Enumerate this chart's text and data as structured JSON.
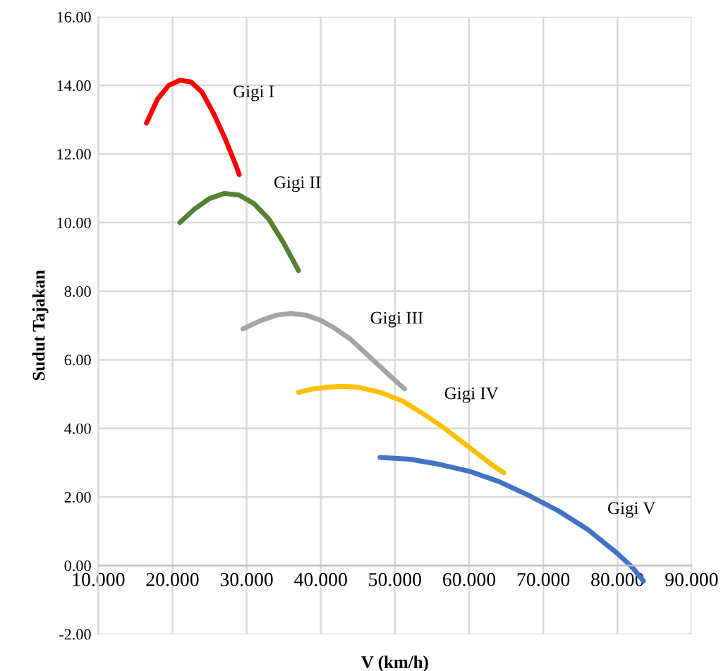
{
  "chart_data": {
    "type": "line",
    "xlabel": "V (km/h)",
    "ylabel": "Sudut Tajakan",
    "xlim": [
      10,
      90
    ],
    "ylim": [
      -2,
      16
    ],
    "xticks": [
      {
        "value": 10,
        "label": "10.000"
      },
      {
        "value": 20,
        "label": "20.000"
      },
      {
        "value": 30,
        "label": "30.000"
      },
      {
        "value": 40,
        "label": "40.000"
      },
      {
        "value": 50,
        "label": "50.000"
      },
      {
        "value": 60,
        "label": "60.000"
      },
      {
        "value": 70,
        "label": "70.000"
      },
      {
        "value": 80,
        "label": "80.000"
      },
      {
        "value": 90,
        "label": "90.000"
      }
    ],
    "yticks": [
      {
        "value": -2,
        "label": "-2.00"
      },
      {
        "value": 0,
        "label": "0.00"
      },
      {
        "value": 2,
        "label": "2.00"
      },
      {
        "value": 4,
        "label": "4.00"
      },
      {
        "value": 6,
        "label": "6.00"
      },
      {
        "value": 8,
        "label": "8.00"
      },
      {
        "value": 10,
        "label": "10.00"
      },
      {
        "value": 12,
        "label": "12.00"
      },
      {
        "value": 14,
        "label": "14.00"
      },
      {
        "value": 16,
        "label": "16.00"
      }
    ],
    "grid": true,
    "marker": "none",
    "line_style": "solid",
    "series": [
      {
        "name": "Gigi I",
        "color": "#ff0000",
        "x": [
          16.5,
          18,
          19.5,
          21,
          22.5,
          24,
          25.5,
          27,
          28.5,
          29
        ],
        "values": [
          12.9,
          13.6,
          14.0,
          14.15,
          14.1,
          13.8,
          13.2,
          12.5,
          11.7,
          11.4
        ]
      },
      {
        "name": "Gigi II",
        "color": "#548235",
        "x": [
          21,
          23,
          25,
          27,
          29,
          31,
          33,
          35,
          37
        ],
        "values": [
          10.0,
          10.4,
          10.7,
          10.85,
          10.8,
          10.55,
          10.1,
          9.4,
          8.6
        ]
      },
      {
        "name": "Gigi III",
        "color": "#a5a5a5",
        "x": [
          29.5,
          32,
          34,
          36,
          38,
          40,
          42,
          44,
          46,
          48,
          50,
          51.3
        ],
        "values": [
          6.9,
          7.15,
          7.3,
          7.35,
          7.3,
          7.15,
          6.9,
          6.6,
          6.2,
          5.8,
          5.4,
          5.15
        ]
      },
      {
        "name": "Gigi IV",
        "color": "#ffc000",
        "x": [
          37,
          39,
          41,
          43,
          45,
          48,
          51,
          54,
          57,
          60,
          63,
          64.7
        ],
        "values": [
          5.05,
          5.15,
          5.2,
          5.22,
          5.2,
          5.05,
          4.8,
          4.4,
          3.95,
          3.45,
          2.95,
          2.7
        ]
      },
      {
        "name": "Gigi V",
        "color": "#4472c4",
        "x": [
          48,
          52,
          56,
          60,
          64,
          68,
          72,
          76,
          80,
          82,
          83.5
        ],
        "values": [
          3.15,
          3.1,
          2.95,
          2.75,
          2.45,
          2.05,
          1.6,
          1.05,
          0.35,
          -0.05,
          -0.45
        ]
      }
    ]
  }
}
